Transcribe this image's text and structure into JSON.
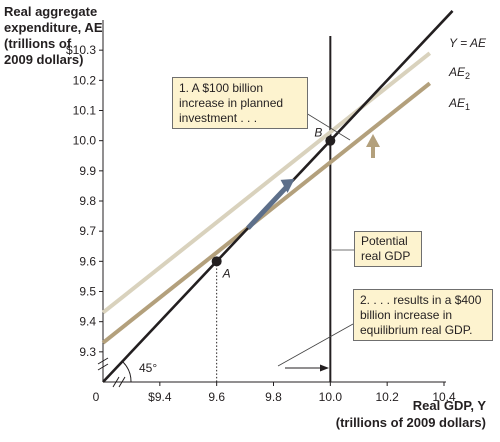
{
  "chart_data": {
    "type": "line",
    "ylabel_lines": [
      "Real aggregate",
      "expenditure, AE",
      "(trillions of",
      "2009 dollars)"
    ],
    "xlabel_lines": [
      "Real GDP, Y",
      "(trillions of 2009 dollars)"
    ],
    "origin_label": "0",
    "x_ticks": [
      {
        "value": 9.4,
        "label": "$9.4"
      },
      {
        "value": 9.6,
        "label": "9.6"
      },
      {
        "value": 9.8,
        "label": "9.8"
      },
      {
        "value": 10.0,
        "label": "10.0"
      },
      {
        "value": 10.2,
        "label": "10.2"
      },
      {
        "value": 10.4,
        "label": "10.4"
      }
    ],
    "y_ticks": [
      {
        "value": 9.3,
        "label": "9.3"
      },
      {
        "value": 9.4,
        "label": "9.4"
      },
      {
        "value": 9.5,
        "label": "9.5"
      },
      {
        "value": 9.6,
        "label": "9.6"
      },
      {
        "value": 9.7,
        "label": "9.7"
      },
      {
        "value": 9.8,
        "label": "9.8"
      },
      {
        "value": 9.9,
        "label": "9.9"
      },
      {
        "value": 10.0,
        "label": "10.0"
      },
      {
        "value": 10.1,
        "label": "10.1"
      },
      {
        "value": 10.2,
        "label": "10.2"
      },
      {
        "value": 10.3,
        "label": "$10.3"
      }
    ],
    "xlim": [
      9.2,
      10.4
    ],
    "ylim": [
      9.2,
      10.4
    ],
    "axis_break": true,
    "series": [
      {
        "name": "Y = AE",
        "x": [
          9.2,
          10.43
        ],
        "y": [
          9.2,
          10.43
        ],
        "color": "#231f20"
      },
      {
        "name": "AE2",
        "x": [
          9.2,
          10.35
        ],
        "y": [
          9.43,
          10.29
        ],
        "color": "#d9d2bd"
      },
      {
        "name": "AE1",
        "x": [
          9.2,
          10.35
        ],
        "y": [
          9.33,
          10.19
        ],
        "color": "#b3a07c"
      }
    ],
    "points": [
      {
        "label": "A",
        "x": 9.6,
        "y": 9.6
      },
      {
        "label": "B",
        "x": 10.0,
        "y": 10.0
      }
    ],
    "vertical_lines": [
      {
        "name": "Potential real GDP",
        "x": 10.0
      }
    ],
    "angle_label": "45°",
    "annotations": [
      {
        "id": "ann1",
        "lines": [
          "1. A $100 billion",
          "increase in planned",
          "investment . . ."
        ]
      },
      {
        "id": "ann_potential",
        "lines": [
          "Potential",
          "real GDP"
        ]
      },
      {
        "id": "ann2",
        "lines": [
          "2. . . . results in a $400",
          "billion increase in",
          "equilibrium real GDP."
        ]
      }
    ],
    "colors": {
      "annotation_fill": "#fdf3cf",
      "shift_arrow": "#b3a07c",
      "movement_arrow": "#5d6f8a"
    }
  }
}
